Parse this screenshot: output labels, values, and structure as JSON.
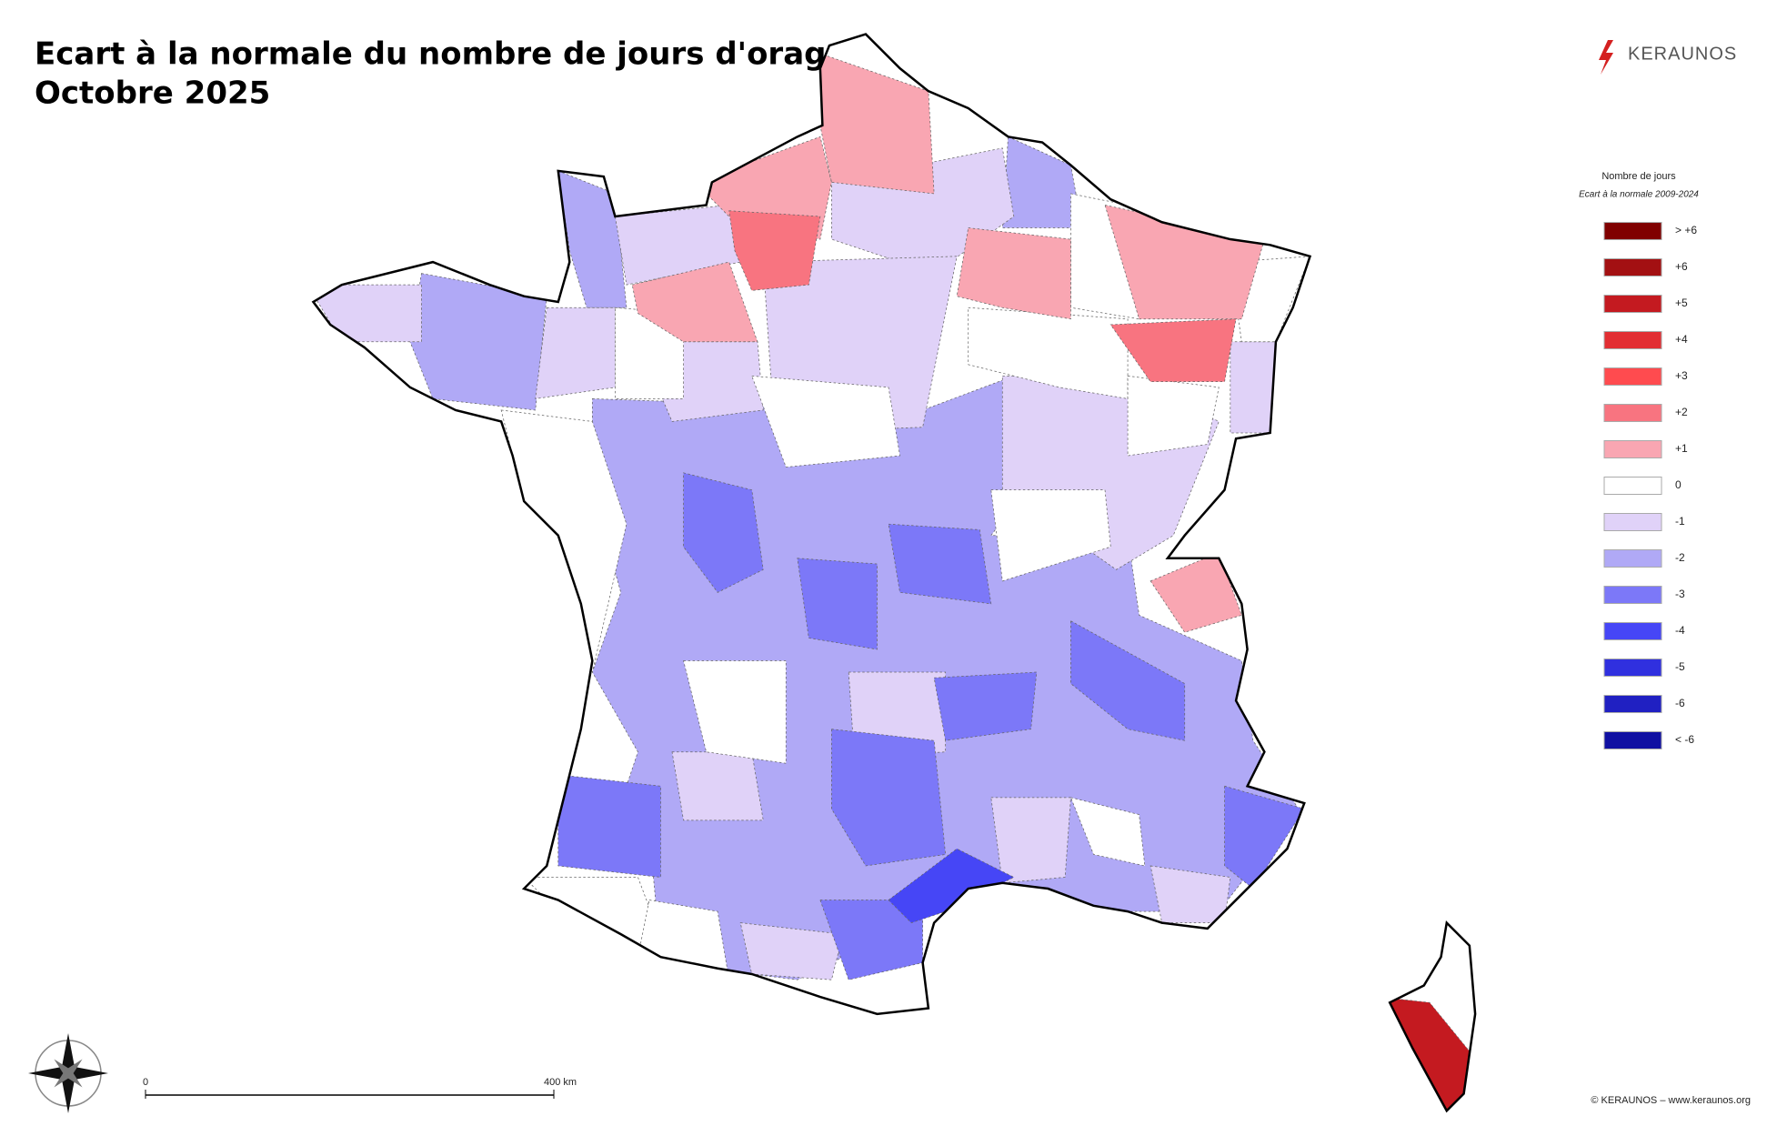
{
  "header": {
    "title_line1": "Ecart à la normale du nombre de jours d'orage",
    "title_line2": "Octobre 2025"
  },
  "logo": "KERAUNOS",
  "legend": {
    "title": "Nombre de jours",
    "subtitle": "Ecart à la normale 2009-2024",
    "items": [
      {
        "label": "> +6",
        "color": "#800000"
      },
      {
        "label": "+6",
        "color": "#a31012"
      },
      {
        "label": "+5",
        "color": "#c41a20"
      },
      {
        "label": "+4",
        "color": "#e22e33"
      },
      {
        "label": "+3",
        "color": "#ff4b4f"
      },
      {
        "label": "+2",
        "color": "#f87480"
      },
      {
        "label": "+1",
        "color": "#f9a6b2"
      },
      {
        "label": "0",
        "color": "#ffffff"
      },
      {
        "label": "-1",
        "color": "#e0d2f8"
      },
      {
        "label": "-2",
        "color": "#b0a9f6"
      },
      {
        "label": "-3",
        "color": "#7c78f8"
      },
      {
        "label": "-4",
        "color": "#4646f6"
      },
      {
        "label": "-5",
        "color": "#3030df"
      },
      {
        "label": "-6",
        "color": "#2020c2"
      },
      {
        "label": "< -6",
        "color": "#1010a2"
      }
    ]
  },
  "scale": {
    "start": "0",
    "end": "400 km"
  },
  "footer": "© KERAUNOS – www.keraunos.org"
}
